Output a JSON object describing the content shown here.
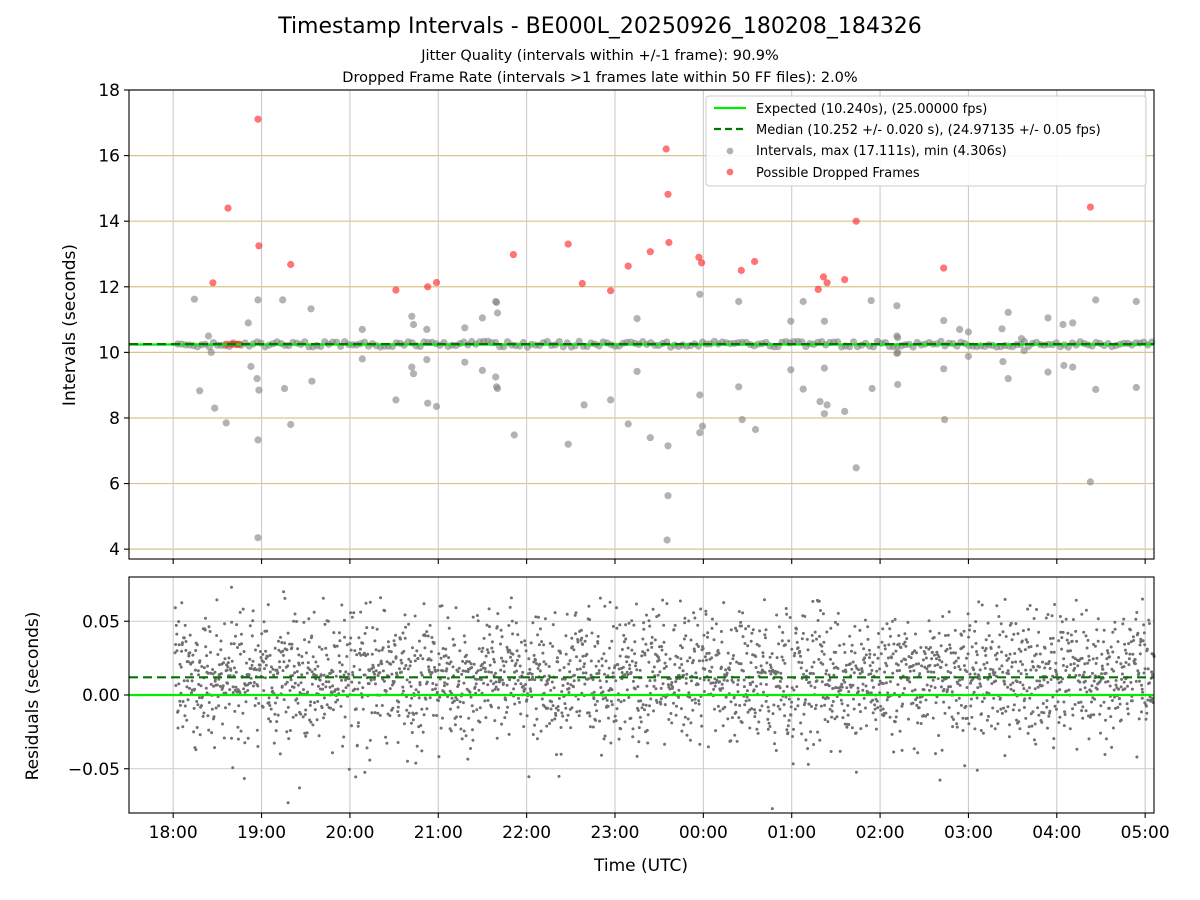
{
  "figure": {
    "title": "Timestamp Intervals - BE000L_20250926_180208_184326",
    "subtitle1": "Jitter Quality (intervals within +/-1 frame): 90.9%",
    "subtitle2": "Dropped Frame Rate (intervals >1 frames late within 50 FF files): 2.0%"
  },
  "chart_data": [
    {
      "type": "scatter",
      "panel": "top",
      "ylabel": "Intervals (seconds)",
      "xlabel": "",
      "ylim": [
        3.7,
        18
      ],
      "yticks": [
        4,
        6,
        8,
        10,
        12,
        14,
        16,
        18
      ],
      "xlim_hours": [
        17.5,
        29.1
      ],
      "gridlines": "horizontal goldenrod, vertical gray",
      "legend_position": "upper-right",
      "legend": [
        "Expected (10.240s), (25.00000 fps)",
        "Median (10.252 +/- 0.020 s), (24.97135 +/- 0.05 fps)",
        "Intervals, max (17.111s), min (4.306s)",
        "Possible Dropped Frames"
      ],
      "colors": {
        "expected": "#00ee00",
        "median": "#007700",
        "intervals": "#808080",
        "dropped": "#ff2a2a",
        "hgrid": "#d6c68a",
        "vgrid": "#cccccc"
      },
      "expected_line": 10.24,
      "median_line": 10.252,
      "baseline_interval": 10.25,
      "baseline_start_hours": 18.05,
      "dropped_frames": [
        [
          18.45,
          12.12
        ],
        [
          18.62,
          14.4
        ],
        [
          18.96,
          17.11
        ],
        [
          18.97,
          13.25
        ],
        [
          19.33,
          12.68
        ],
        [
          20.52,
          11.9
        ],
        [
          20.88,
          12.0
        ],
        [
          20.98,
          12.13
        ],
        [
          21.85,
          12.98
        ],
        [
          22.47,
          13.3
        ],
        [
          22.63,
          12.1
        ],
        [
          22.95,
          11.88
        ],
        [
          23.15,
          12.63
        ],
        [
          23.4,
          13.07
        ],
        [
          23.58,
          16.2
        ],
        [
          23.6,
          14.82
        ],
        [
          23.61,
          13.35
        ],
        [
          23.95,
          12.9
        ],
        [
          23.98,
          12.73
        ],
        [
          24.43,
          12.5
        ],
        [
          24.58,
          12.77
        ],
        [
          25.3,
          11.92
        ],
        [
          25.36,
          12.3
        ],
        [
          25.4,
          12.12
        ],
        [
          25.6,
          12.22
        ],
        [
          25.73,
          14.0
        ],
        [
          26.72,
          12.57
        ],
        [
          28.38,
          14.43
        ],
        [
          18.6,
          10.25
        ],
        [
          18.65,
          10.25
        ],
        [
          18.68,
          10.25
        ],
        [
          18.72,
          10.25
        ],
        [
          18.75,
          10.25
        ]
      ],
      "intervals": [
        [
          18.24,
          11.62
        ],
        [
          18.3,
          8.83
        ],
        [
          18.4,
          10.5
        ],
        [
          18.43,
          10.0
        ],
        [
          18.47,
          8.3
        ],
        [
          18.6,
          7.85
        ],
        [
          18.85,
          10.9
        ],
        [
          18.88,
          9.57
        ],
        [
          18.95,
          9.2
        ],
        [
          18.96,
          11.6
        ],
        [
          18.97,
          8.85
        ],
        [
          18.96,
          7.33
        ],
        [
          18.96,
          4.35
        ],
        [
          19.24,
          11.6
        ],
        [
          19.26,
          8.9
        ],
        [
          19.33,
          7.8
        ],
        [
          19.56,
          11.33
        ],
        [
          19.57,
          9.12
        ],
        [
          20.14,
          10.7
        ],
        [
          20.14,
          9.8
        ],
        [
          20.52,
          8.55
        ],
        [
          20.7,
          11.1
        ],
        [
          20.72,
          10.85
        ],
        [
          20.7,
          9.55
        ],
        [
          20.72,
          9.35
        ],
        [
          20.87,
          10.7
        ],
        [
          20.87,
          9.78
        ],
        [
          20.88,
          8.45
        ],
        [
          20.98,
          8.35
        ],
        [
          21.3,
          10.75
        ],
        [
          21.3,
          9.7
        ],
        [
          21.5,
          11.05
        ],
        [
          21.5,
          9.45
        ],
        [
          21.65,
          11.55
        ],
        [
          21.66,
          11.52
        ],
        [
          21.67,
          11.2
        ],
        [
          21.65,
          9.25
        ],
        [
          21.66,
          8.95
        ],
        [
          21.67,
          8.9
        ],
        [
          21.86,
          7.48
        ],
        [
          22.47,
          7.2
        ],
        [
          22.65,
          8.4
        ],
        [
          22.95,
          8.55
        ],
        [
          23.15,
          7.82
        ],
        [
          23.25,
          11.03
        ],
        [
          23.25,
          9.42
        ],
        [
          23.4,
          7.4
        ],
        [
          23.6,
          7.15
        ],
        [
          23.6,
          5.63
        ],
        [
          23.59,
          4.28
        ],
        [
          23.96,
          11.77
        ],
        [
          23.96,
          8.7
        ],
        [
          23.96,
          7.55
        ],
        [
          23.99,
          7.75
        ],
        [
          24.4,
          11.55
        ],
        [
          24.4,
          8.95
        ],
        [
          24.44,
          7.95
        ],
        [
          24.59,
          7.65
        ],
        [
          24.99,
          10.95
        ],
        [
          24.99,
          9.47
        ],
        [
          25.13,
          11.55
        ],
        [
          25.13,
          8.88
        ],
        [
          25.32,
          8.5
        ],
        [
          25.37,
          10.95
        ],
        [
          25.37,
          9.52
        ],
        [
          25.37,
          8.13
        ],
        [
          25.4,
          8.4
        ],
        [
          25.6,
          8.2
        ],
        [
          25.73,
          6.48
        ],
        [
          25.9,
          11.58
        ],
        [
          25.91,
          8.9
        ],
        [
          26.19,
          11.42
        ],
        [
          26.19,
          10.5
        ],
        [
          26.2,
          10.45
        ],
        [
          26.19,
          9.97
        ],
        [
          26.2,
          10.0
        ],
        [
          26.2,
          9.02
        ],
        [
          26.72,
          10.97
        ],
        [
          26.72,
          9.5
        ],
        [
          26.73,
          7.95
        ],
        [
          26.9,
          10.7
        ],
        [
          27.0,
          10.62
        ],
        [
          27.0,
          9.88
        ],
        [
          27.38,
          10.72
        ],
        [
          27.39,
          9.72
        ],
        [
          27.45,
          11.22
        ],
        [
          27.45,
          9.2
        ],
        [
          27.6,
          10.42
        ],
        [
          27.63,
          10.05
        ],
        [
          27.9,
          11.05
        ],
        [
          27.9,
          9.4
        ],
        [
          28.07,
          10.85
        ],
        [
          28.08,
          9.6
        ],
        [
          28.18,
          10.9
        ],
        [
          28.18,
          9.55
        ],
        [
          28.38,
          6.05
        ],
        [
          28.44,
          11.6
        ],
        [
          28.44,
          8.87
        ],
        [
          28.9,
          11.55
        ],
        [
          28.9,
          8.93
        ]
      ]
    },
    {
      "type": "scatter",
      "panel": "bottom",
      "ylabel": "Residuals (seconds)",
      "xlabel": "Time (UTC)",
      "ylim": [
        -0.08,
        0.08
      ],
      "yticks": [
        -0.05,
        0.0,
        0.05
      ],
      "ytick_labels": [
        "−0.05",
        "0.00",
        "0.05"
      ],
      "xlim_hours": [
        17.5,
        29.1
      ],
      "xticks_hours": [
        18,
        19,
        20,
        21,
        22,
        23,
        24,
        25,
        26,
        27,
        28,
        29
      ],
      "xtick_labels": [
        "18:00",
        "19:00",
        "20:00",
        "21:00",
        "22:00",
        "23:00",
        "00:00",
        "01:00",
        "02:00",
        "03:00",
        "04:00",
        "05:00"
      ],
      "expected_line": 0.0,
      "median_line": 0.012,
      "residual_mean": 0.012,
      "residual_spread": 0.022,
      "residual_count": 2700,
      "residual_start_hours": 18.02,
      "residual_end_hours": 29.1,
      "notable_points": [
        [
          18.66,
          0.073
        ],
        [
          19.25,
          0.07
        ],
        [
          19.3,
          -0.073
        ],
        [
          19.43,
          -0.063
        ],
        [
          24.78,
          -0.077
        ],
        [
          27.1,
          -0.051
        ],
        [
          27.77,
          0.058
        ],
        [
          28.97,
          0.065
        ]
      ]
    }
  ]
}
